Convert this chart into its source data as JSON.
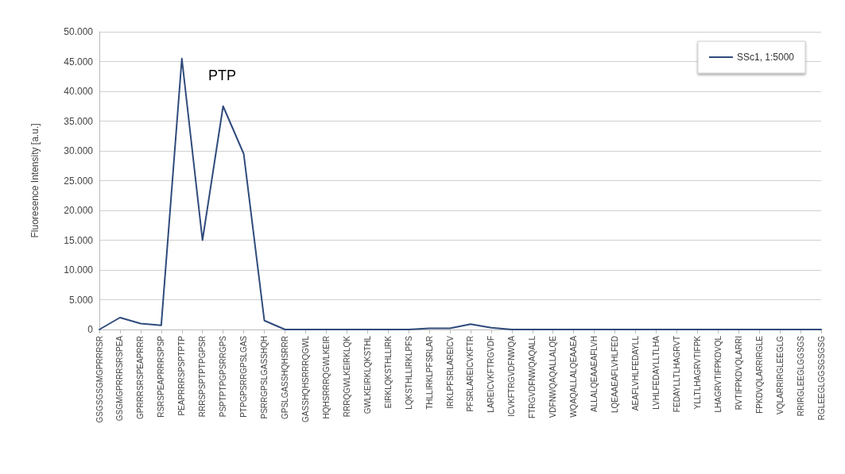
{
  "chart_data": {
    "type": "line",
    "ylabel": "Fluoresence Intensity [a.u.]",
    "categories": [
      "GSGSGSGMGPRRRSR",
      "GSGMGPRRRSRSPEA",
      "GPRRRSRSPEAPRRR",
      "RSRSPEAPRRRSPSP",
      "PEAPRRRSPSPTPTP",
      "RRRSPSPTPTPGPSR",
      "PSPTPTPGPSRRGPS",
      "PTPGPSRRGPSLGAS",
      "PSRRGPSLGASSHQH",
      "GPSLGASSHQHSRRR",
      "GASSHQHSRRRQGWL",
      "HQHSRRRQGWLKEIR",
      "RRRQGWLKEIRKLQK",
      "GWLKEIRKLQKSTHL",
      "EIRKLQKSTHLLIRK",
      "LQKSTHLLIRKLPFS",
      "THLLIRKLPFSRLAR",
      "IRKLPFSRLAREICV",
      "PFSRLAREICVKFTR",
      "LAREICVKFTRGVDF",
      "ICVKFTRGVDFNWQA",
      "FTRGVDFNWQAQALL",
      "VDFNWQAQALLALQE",
      "WQAQALLALQEAAEA",
      "ALLALQEAAEAFLVH",
      "LQEAAEAFLVHLFED",
      "AEAFLVHLFEDAYLL",
      "LVHLFEDAYLLTLHA",
      "FEDAYLLTLHAGRVT",
      "YLLTLHAGRVTIFPK",
      "LHAGRVTIFPKDVQL",
      "RVTIFPKDVQLARRI",
      "FPKDVQLARRIRGLE",
      "VQLARRIRGLEEGLG",
      "RRIRGLEEGLGGSGS",
      "RGLEEGLGGSGSGSG"
    ],
    "series": [
      {
        "name": "SSc1, 1:5000",
        "color": "#2f4b7c",
        "values": [
          0,
          2000,
          1000,
          700,
          45500,
          15000,
          37500,
          29500,
          1500,
          0,
          0,
          0,
          0,
          0,
          0,
          0,
          200,
          200,
          900,
          300,
          0,
          0,
          0,
          0,
          0,
          0,
          0,
          0,
          0,
          0,
          0,
          0,
          0,
          0,
          0,
          0
        ]
      }
    ],
    "ylim": [
      0,
      50000
    ],
    "yticks": [
      {
        "value": 0,
        "label": "0"
      },
      {
        "value": 5000,
        "label": "5.000"
      },
      {
        "value": 10000,
        "label": "10.000"
      },
      {
        "value": 15000,
        "label": "15.000"
      },
      {
        "value": 20000,
        "label": "20.000"
      },
      {
        "value": 25000,
        "label": "25.000"
      },
      {
        "value": 30000,
        "label": "30.000"
      },
      {
        "value": 35000,
        "label": "35.000"
      },
      {
        "value": 40000,
        "label": "40.000"
      },
      {
        "value": 45000,
        "label": "45.000"
      },
      {
        "value": 50000,
        "label": "50.000"
      }
    ],
    "annotations": [
      "PTP"
    ],
    "grid": "y",
    "legend": "top right",
    "marker": "none",
    "line_style": "solid"
  }
}
